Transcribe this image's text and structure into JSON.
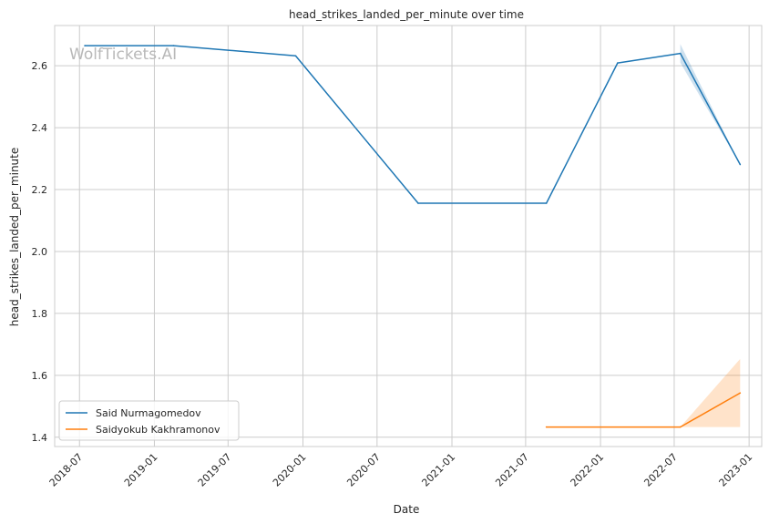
{
  "chart_data": {
    "type": "line",
    "title": "head_strikes_landed_per_minute over time",
    "xlabel": "Date",
    "ylabel": "head_strikes_landed_per_minute",
    "watermark": "WolfTickets.AI",
    "x_ticks": [
      "2018-07",
      "2019-01",
      "2019-07",
      "2020-01",
      "2020-07",
      "2021-01",
      "2021-07",
      "2022-01",
      "2022-07",
      "2023-01"
    ],
    "y_ticks": [
      "1.4",
      "1.6",
      "1.8",
      "2.0",
      "2.2",
      "2.4",
      "2.6"
    ],
    "xlim": [
      "2018-05-01",
      "2023-02-01"
    ],
    "ylim": [
      1.37,
      2.73
    ],
    "grid": true,
    "legend_position": "lower-left",
    "series": [
      {
        "name": "Said Nurmagomedov",
        "color": "#1f77b4",
        "points": [
          {
            "x": "2018-07-14",
            "y": 2.665
          },
          {
            "x": "2019-02-17",
            "y": 2.665
          },
          {
            "x": "2019-12-14",
            "y": 2.632
          },
          {
            "x": "2020-10-10",
            "y": 2.156
          },
          {
            "x": "2021-08-21",
            "y": 2.156
          },
          {
            "x": "2022-02-12",
            "y": 2.609
          },
          {
            "x": "2022-07-16",
            "y": 2.64
          },
          {
            "x": "2022-12-10",
            "y": 2.281
          }
        ],
        "band": [
          {
            "x": "2022-07-16",
            "low": 2.61,
            "high": 2.67
          },
          {
            "x": "2022-12-10",
            "low": 2.281,
            "high": 2.281
          }
        ]
      },
      {
        "name": "Saidyokub Kakhramonov",
        "color": "#ff7f0e",
        "points": [
          {
            "x": "2021-08-21",
            "y": 1.433
          },
          {
            "x": "2022-07-16",
            "y": 1.433
          },
          {
            "x": "2022-12-10",
            "y": 1.543
          }
        ],
        "band": [
          {
            "x": "2022-07-16",
            "low": 1.433,
            "high": 1.433
          },
          {
            "x": "2022-12-10",
            "low": 1.433,
            "high": 1.653
          }
        ]
      }
    ]
  }
}
